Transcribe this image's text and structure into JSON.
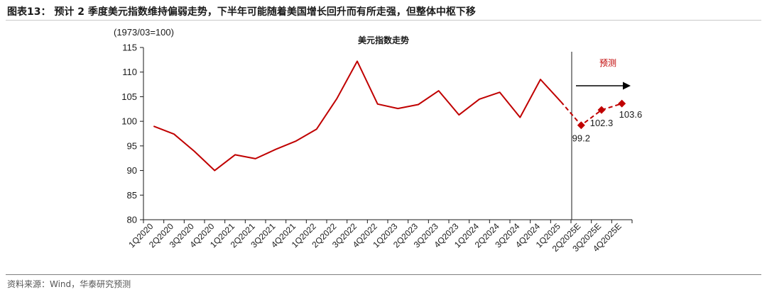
{
  "figure": {
    "title": "图表13：  预计 2 季度美元指数维持偏弱走势，下半年可能随着美国增长回升而有所走强，但整体中枢下移",
    "source": "资料来源：Wind，华泰研究预测"
  },
  "chart_data": {
    "type": "line",
    "title": "美元指数走势",
    "unit_label": "(1973/03=100)",
    "forecast_label": "预测",
    "ylim": [
      80,
      115
    ],
    "yticks": [
      80,
      85,
      90,
      95,
      100,
      105,
      110,
      115
    ],
    "grid": false,
    "legend": "none",
    "categories": [
      "1Q2020",
      "2Q2020",
      "3Q2020",
      "4Q2020",
      "1Q2021",
      "2Q2021",
      "3Q2021",
      "4Q2021",
      "1Q2022",
      "2Q2022",
      "3Q2022",
      "4Q2022",
      "1Q2023",
      "2Q2023",
      "3Q2023",
      "4Q2023",
      "1Q2024",
      "2Q2024",
      "3Q2024",
      "4Q2024",
      "1Q2025",
      "2Q2025E",
      "3Q2025E",
      "4Q2025E"
    ],
    "actual": {
      "color": "#c00000",
      "values": [
        99.0,
        97.4,
        93.9,
        90.0,
        93.2,
        92.4,
        94.3,
        96.0,
        98.4,
        104.6,
        112.2,
        103.5,
        102.6,
        103.4,
        106.2,
        101.3,
        104.5,
        105.9,
        100.8,
        108.5,
        104.0
      ]
    },
    "forecast": {
      "color": "#c00000",
      "start_index": 21,
      "values": [
        99.2,
        102.3,
        103.6
      ],
      "labels": [
        "99.2",
        "102.3",
        "103.6"
      ]
    }
  }
}
